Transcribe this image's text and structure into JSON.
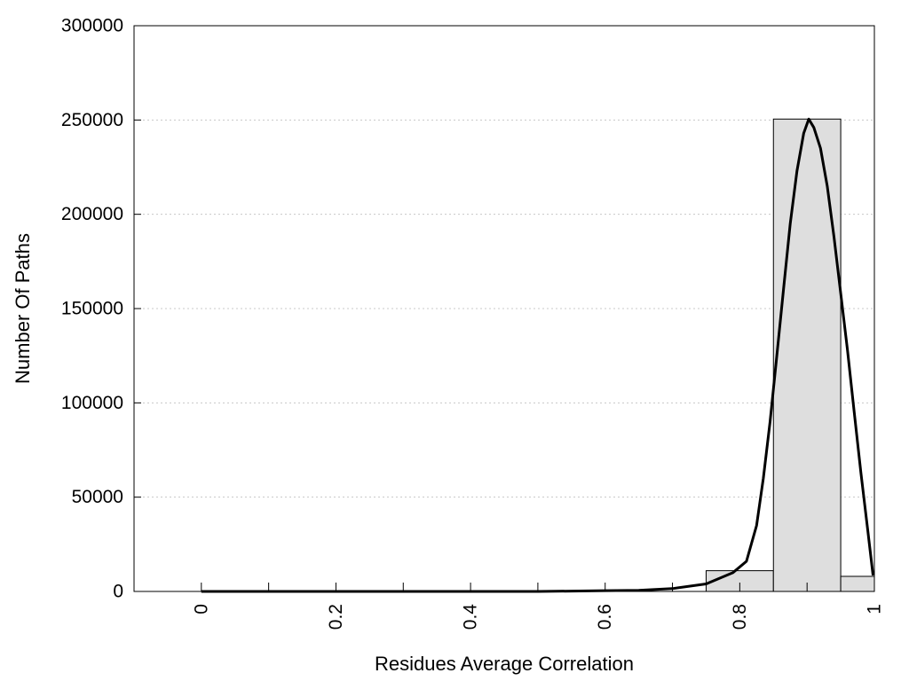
{
  "chart_data": {
    "type": "bar",
    "title": "",
    "xlabel": "Residues Average Correlation",
    "ylabel": "Number Of Paths",
    "xlim": [
      -0.1,
      1.0
    ],
    "ylim": [
      0,
      300000
    ],
    "grid": true,
    "legend": "none",
    "x_tick_values": [
      0,
      0.1,
      0.2,
      0.3,
      0.4,
      0.5,
      0.6,
      0.7,
      0.8,
      0.9,
      1.0
    ],
    "x_tick_labels": [
      {
        "value": 0,
        "text": "0"
      },
      {
        "value": 0.2,
        "text": "0.2"
      },
      {
        "value": 0.4,
        "text": "0.4"
      },
      {
        "value": 0.6,
        "text": "0.6"
      },
      {
        "value": 0.8,
        "text": "0.8"
      },
      {
        "value": 1.0,
        "text": "1"
      }
    ],
    "y_tick_labels": [
      {
        "value": 0,
        "text": "0"
      },
      {
        "value": 50000,
        "text": "50000"
      },
      {
        "value": 100000,
        "text": "100000"
      },
      {
        "value": 150000,
        "text": "150000"
      },
      {
        "value": 200000,
        "text": "200000"
      },
      {
        "value": 250000,
        "text": "250000"
      },
      {
        "value": 300000,
        "text": "300000"
      }
    ],
    "bars": [
      {
        "x0": 0.75,
        "x1": 0.85,
        "value": 11000
      },
      {
        "x0": 0.85,
        "x1": 0.95,
        "value": 250500
      },
      {
        "x0": 0.95,
        "x1": 1.0,
        "value": 8000
      }
    ],
    "bar_fill": "#dedede",
    "bar_stroke": "#000000",
    "curve": {
      "color": "#000000",
      "points": [
        [
          0,
          0
        ],
        [
          0.3,
          0
        ],
        [
          0.5,
          0
        ],
        [
          0.55,
          200
        ],
        [
          0.6,
          400
        ],
        [
          0.65,
          600
        ],
        [
          0.7,
          1500
        ],
        [
          0.75,
          4000
        ],
        [
          0.79,
          10000
        ],
        [
          0.81,
          16000
        ],
        [
          0.825,
          35000
        ],
        [
          0.835,
          60000
        ],
        [
          0.845,
          90000
        ],
        [
          0.855,
          125000
        ],
        [
          0.865,
          160000
        ],
        [
          0.875,
          195000
        ],
        [
          0.885,
          223000
        ],
        [
          0.895,
          243000
        ],
        [
          0.9025,
          250500
        ],
        [
          0.91,
          246000
        ],
        [
          0.92,
          235000
        ],
        [
          0.93,
          215000
        ],
        [
          0.94,
          188000
        ],
        [
          0.95,
          158000
        ],
        [
          0.96,
          128000
        ],
        [
          0.97,
          95000
        ],
        [
          0.98,
          63000
        ],
        [
          0.99,
          33000
        ],
        [
          0.998,
          8500
        ]
      ]
    }
  }
}
